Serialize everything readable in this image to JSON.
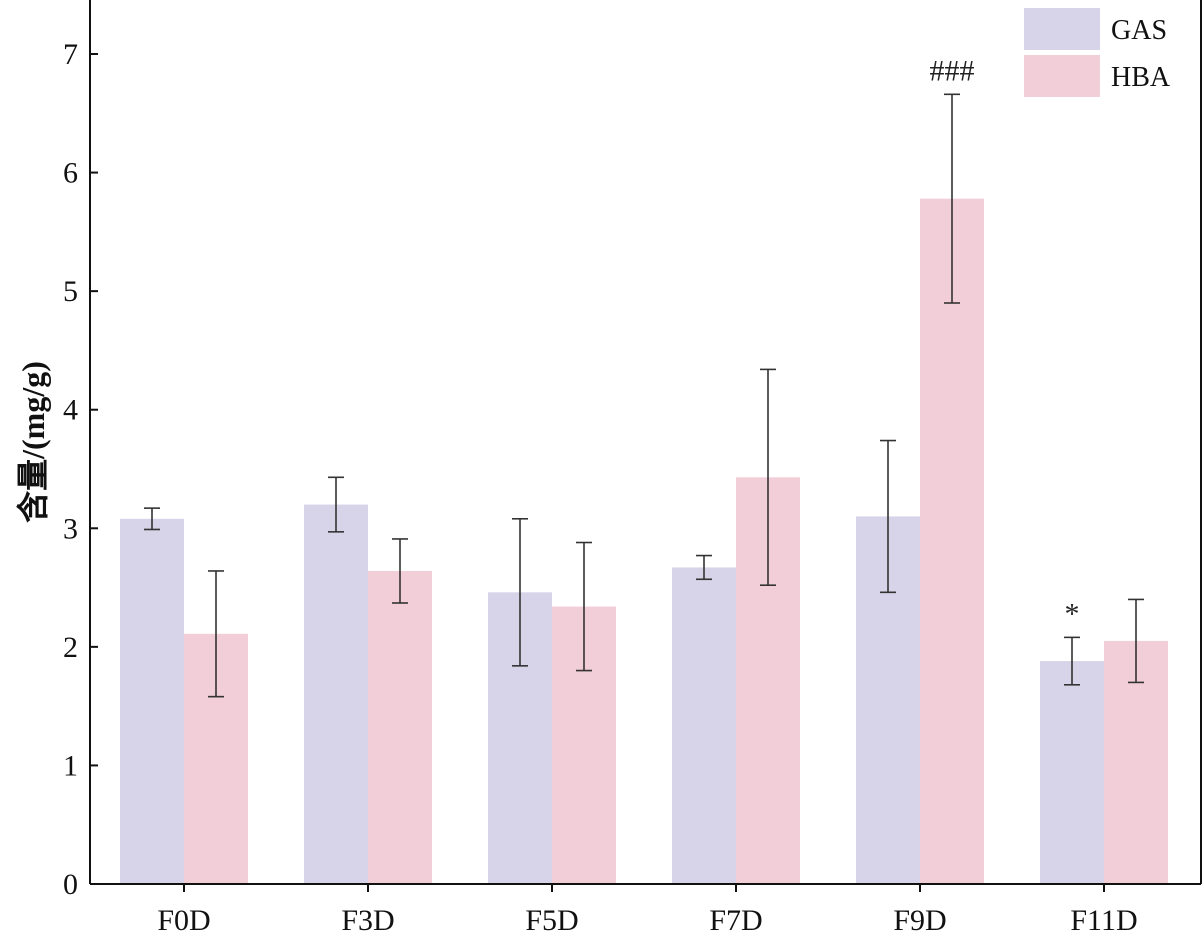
{
  "chart_data": {
    "type": "bar",
    "categories": [
      "F0D",
      "F3D",
      "F5D",
      "F7D",
      "F9D",
      "F11D"
    ],
    "series": [
      {
        "name": "GAS",
        "color": "#d7d3e8",
        "values": [
          3.08,
          3.2,
          2.46,
          2.67,
          3.1,
          1.88
        ],
        "errors": [
          0.09,
          0.23,
          0.62,
          0.1,
          0.64,
          0.2
        ]
      },
      {
        "name": "HBA",
        "color": "#f2cfd8",
        "values": [
          2.11,
          2.64,
          2.34,
          3.43,
          5.78,
          2.05
        ],
        "errors": [
          0.53,
          0.27,
          0.54,
          0.91,
          0.88,
          0.35
        ]
      }
    ],
    "annotations": [
      {
        "text": "*",
        "category": "F11D",
        "series": "GAS"
      },
      {
        "text": "###",
        "category": "F9D",
        "series": "HBA"
      }
    ],
    "ylabel": "含量/(mg/g)",
    "yticks": [
      "0",
      "1",
      "2",
      "3",
      "4",
      "5",
      "6",
      "7"
    ],
    "ylim": [
      0,
      7.45
    ],
    "grid": false,
    "legend_position": "top-right"
  }
}
